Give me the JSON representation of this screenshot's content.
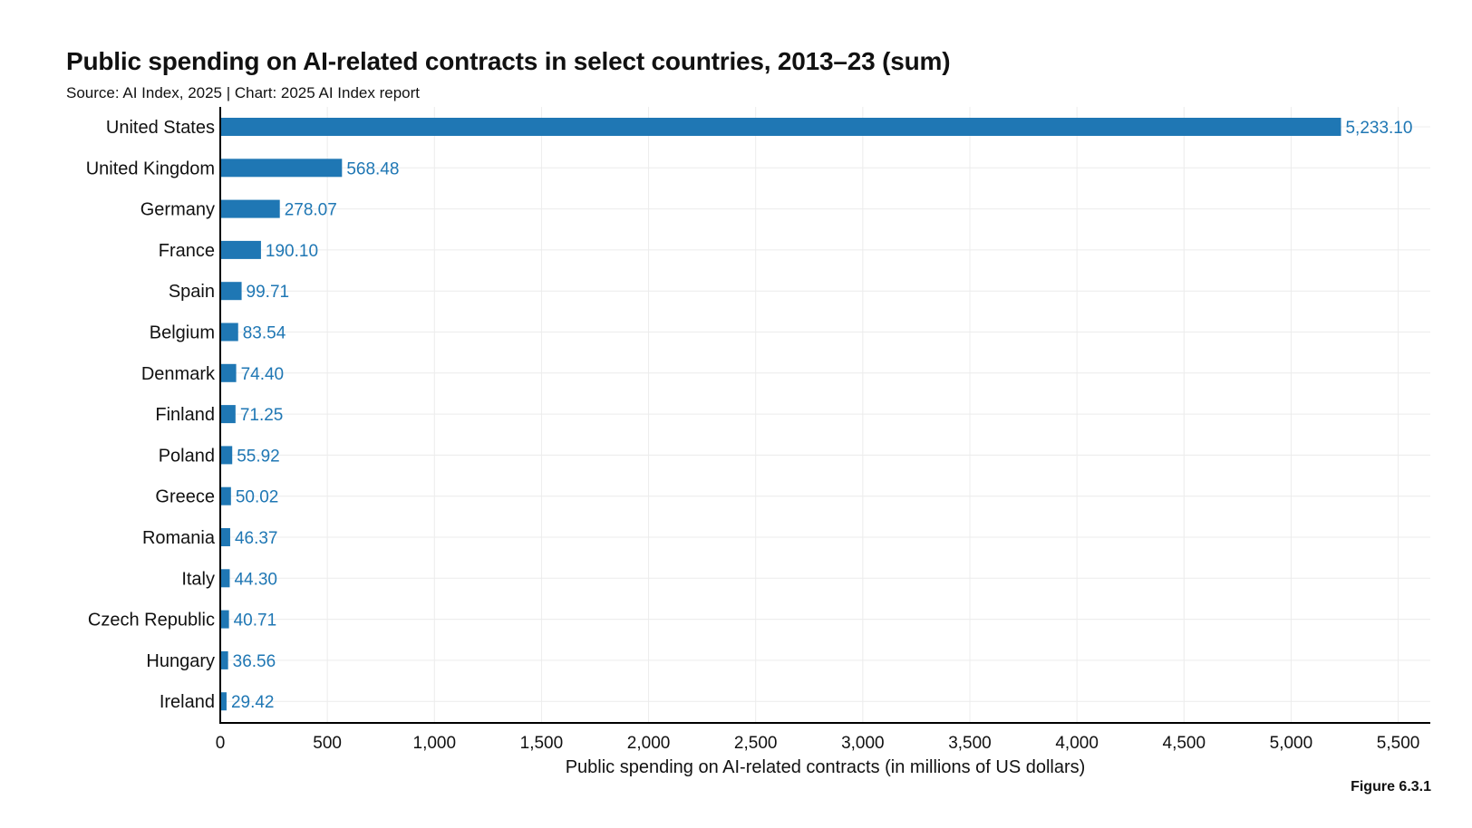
{
  "figure_label": "Figure 6.3.1",
  "chart_data": {
    "type": "bar",
    "orientation": "horizontal",
    "title": "Public spending on AI-related contracts in select countries, 2013–23 (sum)",
    "subtitle": "Source: AI Index, 2025 | Chart: 2025 AI Index report",
    "xlabel": "Public spending on AI-related contracts (in millions of US dollars)",
    "ylabel": "",
    "categories": [
      "United States",
      "United Kingdom",
      "Germany",
      "France",
      "Spain",
      "Belgium",
      "Denmark",
      "Finland",
      "Poland",
      "Greece",
      "Romania",
      "Italy",
      "Czech Republic",
      "Hungary",
      "Ireland"
    ],
    "values": [
      5233.1,
      568.48,
      278.07,
      190.1,
      99.71,
      83.54,
      74.4,
      71.25,
      55.92,
      50.02,
      46.37,
      44.3,
      40.71,
      36.56,
      29.42
    ],
    "value_labels": [
      "5,233.10",
      "568.48",
      "278.07",
      "190.10",
      "99.71",
      "83.54",
      "74.40",
      "71.25",
      "55.92",
      "50.02",
      "46.37",
      "44.30",
      "40.71",
      "36.56",
      "29.42"
    ],
    "xlim": [
      0,
      5650
    ],
    "xticks": [
      0,
      500,
      1000,
      1500,
      2000,
      2500,
      3000,
      3500,
      4000,
      4500,
      5000,
      5500
    ],
    "xtick_labels": [
      "0",
      "500",
      "1,000",
      "1,500",
      "2,000",
      "2,500",
      "3,000",
      "3,500",
      "4,000",
      "4,500",
      "5,000",
      "5,500"
    ],
    "grid": true,
    "legend": "none",
    "bar_color": "#1f77b4",
    "label_color": "#1f77b4",
    "grid_color": "#ececec",
    "axis_color": "#000000"
  }
}
